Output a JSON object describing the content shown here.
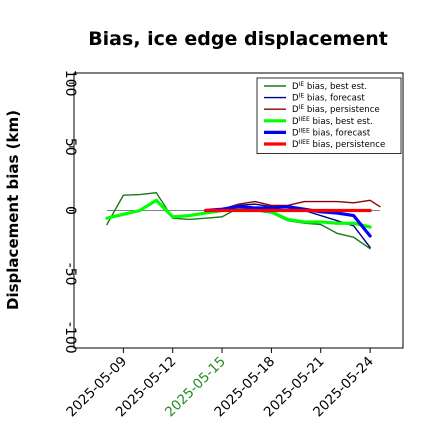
{
  "chart_data": {
    "type": "line",
    "title": "Bias, ice edge displacement",
    "xlabel": "",
    "ylabel": "Displacement bias (km)",
    "xlim": [
      "2025-05-06",
      "2025-05-26"
    ],
    "ylim": [
      -108,
      108
    ],
    "yticks": [
      100,
      50,
      0,
      -50,
      -100
    ],
    "xticks": [
      {
        "date": "2025-05-09",
        "label": "2025-05-09",
        "color": "#000000"
      },
      {
        "date": "2025-05-12",
        "label": "2025-05-12",
        "color": "#000000"
      },
      {
        "date": "2025-05-15",
        "label": "2025-05-15",
        "color": "#228b22"
      },
      {
        "date": "2025-05-18",
        "label": "2025-05-18",
        "color": "#000000"
      },
      {
        "date": "2025-05-21",
        "label": "2025-05-21",
        "color": "#000000"
      },
      {
        "date": "2025-05-24",
        "label": "2025-05-24",
        "color": "#000000"
      }
    ],
    "zero_line": {
      "y": 0,
      "color": "#808080"
    },
    "grid": false,
    "legend_position": "top-right",
    "series": [
      {
        "name_base": "D",
        "name_sup": "IE",
        "name_rest": " bias, best est.",
        "color": "#1a7a1a",
        "width": 1.4,
        "points": [
          [
            "2025-05-08",
            -11
          ],
          [
            "2025-05-09",
            12
          ],
          [
            "2025-05-10",
            12.5
          ],
          [
            "2025-05-11",
            14
          ],
          [
            "2025-05-12",
            -6
          ],
          [
            "2025-05-13",
            -7
          ],
          [
            "2025-05-14",
            -6
          ],
          [
            "2025-05-15",
            -5
          ],
          [
            "2025-05-16",
            2
          ],
          [
            "2025-05-17",
            0
          ],
          [
            "2025-05-18",
            -2
          ],
          [
            "2025-05-19",
            -8
          ],
          [
            "2025-05-20",
            -10
          ],
          [
            "2025-05-21",
            -11
          ],
          [
            "2025-05-22",
            -18
          ],
          [
            "2025-05-23",
            -21
          ],
          [
            "2025-05-24",
            -30
          ]
        ]
      },
      {
        "name_base": "D",
        "name_sup": "IE",
        "name_rest": " bias, forecast",
        "color": "#000080",
        "width": 1.4,
        "points": [
          [
            "2025-05-14",
            0
          ],
          [
            "2025-05-15",
            1
          ],
          [
            "2025-05-16",
            4
          ],
          [
            "2025-05-17",
            5
          ],
          [
            "2025-05-18",
            3
          ],
          [
            "2025-05-19",
            2
          ],
          [
            "2025-05-20",
            0
          ],
          [
            "2025-05-21",
            -4
          ],
          [
            "2025-05-22",
            -8
          ],
          [
            "2025-05-23",
            -12
          ],
          [
            "2025-05-24",
            -29
          ]
        ]
      },
      {
        "name_base": "D",
        "name_sup": "IE",
        "name_rest": " bias, persistence",
        "color": "#8b0000",
        "width": 1.4,
        "points": [
          [
            "2025-05-14",
            0
          ],
          [
            "2025-05-15",
            1
          ],
          [
            "2025-05-16",
            5
          ],
          [
            "2025-05-17",
            7
          ],
          [
            "2025-05-18",
            4
          ],
          [
            "2025-05-19",
            4
          ],
          [
            "2025-05-20",
            7
          ],
          [
            "2025-05-21",
            7
          ],
          [
            "2025-05-22",
            7
          ],
          [
            "2025-05-23",
            6
          ],
          [
            "2025-05-24",
            8
          ],
          [
            "2025-05-24.6",
            3
          ]
        ]
      },
      {
        "name_base": "D",
        "name_sup": "IIEE",
        "name_rest": " bias, best est.",
        "color": "#00ff00",
        "width": 3.2,
        "points": [
          [
            "2025-05-08",
            -6
          ],
          [
            "2025-05-09",
            -3
          ],
          [
            "2025-05-10",
            0
          ],
          [
            "2025-05-11",
            8
          ],
          [
            "2025-05-12",
            -5
          ],
          [
            "2025-05-13",
            -4
          ],
          [
            "2025-05-14",
            -2
          ],
          [
            "2025-05-15",
            0
          ],
          [
            "2025-05-16",
            2
          ],
          [
            "2025-05-17",
            1
          ],
          [
            "2025-05-18",
            -1
          ],
          [
            "2025-05-19",
            -7
          ],
          [
            "2025-05-20",
            -9
          ],
          [
            "2025-05-21",
            -9
          ],
          [
            "2025-05-22",
            -10
          ],
          [
            "2025-05-23",
            -10
          ],
          [
            "2025-05-24",
            -13
          ]
        ]
      },
      {
        "name_base": "D",
        "name_sup": "IIEE",
        "name_rest": " bias, forecast",
        "color": "#0000ff",
        "width": 3.2,
        "points": [
          [
            "2025-05-14",
            0
          ],
          [
            "2025-05-15",
            1
          ],
          [
            "2025-05-16",
            3
          ],
          [
            "2025-05-17",
            2
          ],
          [
            "2025-05-18",
            2
          ],
          [
            "2025-05-19",
            3
          ],
          [
            "2025-05-20",
            1
          ],
          [
            "2025-05-21",
            -1
          ],
          [
            "2025-05-22",
            -2
          ],
          [
            "2025-05-23",
            -4
          ],
          [
            "2025-05-24",
            -20
          ]
        ]
      },
      {
        "name_base": "D",
        "name_sup": "IIEE",
        "name_rest": " bias, persistence",
        "color": "#ff0000",
        "width": 3.2,
        "points": [
          [
            "2025-05-14",
            0
          ],
          [
            "2025-05-15",
            0
          ],
          [
            "2025-05-16",
            0
          ],
          [
            "2025-05-17",
            0
          ],
          [
            "2025-05-18",
            0
          ],
          [
            "2025-05-19",
            0
          ],
          [
            "2025-05-20",
            0
          ],
          [
            "2025-05-21",
            0
          ],
          [
            "2025-05-22",
            0
          ],
          [
            "2025-05-23",
            0
          ],
          [
            "2025-05-24",
            0
          ]
        ]
      }
    ]
  }
}
